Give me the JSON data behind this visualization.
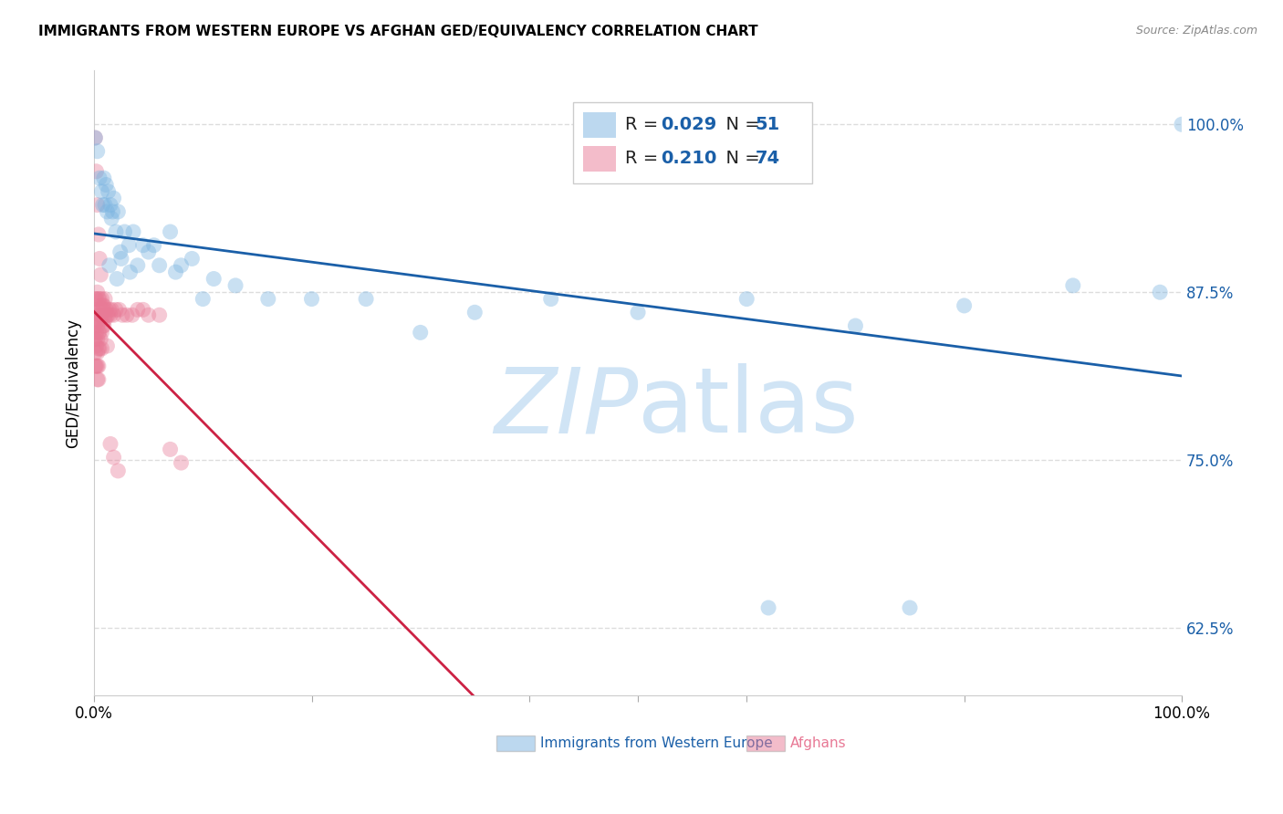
{
  "title": "IMMIGRANTS FROM WESTERN EUROPE VS AFGHAN GED/EQUIVALENCY CORRELATION CHART",
  "source": "Source: ZipAtlas.com",
  "ylabel": "GED/Equivalency",
  "yticks": [
    0.625,
    0.75,
    0.875,
    1.0
  ],
  "ytick_labels": [
    "62.5%",
    "75.0%",
    "87.5%",
    "100.0%"
  ],
  "xlim": [
    0.0,
    1.0
  ],
  "ylim": [
    0.575,
    1.04
  ],
  "background_color": "#ffffff",
  "grid_color": "#dddddd",
  "blue_color": "#7ab3e0",
  "pink_color": "#e87a96",
  "trend_blue": "#1a5fa8",
  "trend_pink": "#cc2244",
  "legend_r1": "R = 0.029",
  "legend_n1": "N = 51",
  "legend_r2": "R = 0.210",
  "legend_n2": "N = 74",
  "legend_color_r": "#1a5fa8",
  "legend_color_black": "#333333",
  "blue_scatter_x": [
    0.001,
    0.003,
    0.005,
    0.007,
    0.008,
    0.009,
    0.01,
    0.011,
    0.012,
    0.013,
    0.015,
    0.016,
    0.018,
    0.02,
    0.022,
    0.025,
    0.028,
    0.032,
    0.036,
    0.04,
    0.045,
    0.05,
    0.06,
    0.07,
    0.08,
    0.09,
    0.11,
    0.13,
    0.16,
    0.2,
    0.25,
    0.3,
    0.35,
    0.42,
    0.5,
    0.6,
    0.7,
    0.8,
    0.9,
    0.98,
    1.0,
    0.62,
    0.75,
    0.014,
    0.017,
    0.021,
    0.024,
    0.033,
    0.055,
    0.075,
    0.1
  ],
  "blue_scatter_y": [
    0.99,
    0.98,
    0.96,
    0.95,
    0.94,
    0.96,
    0.94,
    0.955,
    0.935,
    0.95,
    0.94,
    0.93,
    0.945,
    0.92,
    0.935,
    0.9,
    0.92,
    0.91,
    0.92,
    0.895,
    0.91,
    0.905,
    0.895,
    0.92,
    0.895,
    0.9,
    0.885,
    0.88,
    0.87,
    0.87,
    0.87,
    0.845,
    0.86,
    0.87,
    0.86,
    0.87,
    0.85,
    0.865,
    0.88,
    0.875,
    1.0,
    0.64,
    0.64,
    0.895,
    0.935,
    0.885,
    0.905,
    0.89,
    0.91,
    0.89,
    0.87
  ],
  "pink_scatter_x": [
    0.0,
    0.0,
    0.0,
    0.001,
    0.001,
    0.001,
    0.001,
    0.001,
    0.001,
    0.002,
    0.002,
    0.002,
    0.002,
    0.002,
    0.003,
    0.003,
    0.003,
    0.003,
    0.003,
    0.003,
    0.003,
    0.004,
    0.004,
    0.004,
    0.004,
    0.004,
    0.004,
    0.005,
    0.005,
    0.005,
    0.005,
    0.006,
    0.006,
    0.006,
    0.007,
    0.007,
    0.007,
    0.007,
    0.008,
    0.008,
    0.009,
    0.009,
    0.01,
    0.01,
    0.011,
    0.012,
    0.013,
    0.014,
    0.015,
    0.016,
    0.018,
    0.02,
    0.023,
    0.026,
    0.03,
    0.035,
    0.04,
    0.045,
    0.05,
    0.06,
    0.07,
    0.08,
    0.001,
    0.002,
    0.003,
    0.004,
    0.005,
    0.006,
    0.008,
    0.01,
    0.012,
    0.015,
    0.018,
    0.022
  ],
  "pink_scatter_y": [
    0.86,
    0.85,
    0.84,
    0.87,
    0.86,
    0.85,
    0.84,
    0.83,
    0.82,
    0.87,
    0.855,
    0.845,
    0.835,
    0.82,
    0.875,
    0.862,
    0.85,
    0.84,
    0.83,
    0.82,
    0.81,
    0.87,
    0.855,
    0.845,
    0.833,
    0.82,
    0.81,
    0.87,
    0.858,
    0.845,
    0.833,
    0.865,
    0.855,
    0.84,
    0.87,
    0.858,
    0.845,
    0.833,
    0.865,
    0.85,
    0.865,
    0.85,
    0.87,
    0.855,
    0.862,
    0.858,
    0.858,
    0.862,
    0.858,
    0.862,
    0.858,
    0.862,
    0.862,
    0.858,
    0.858,
    0.858,
    0.862,
    0.862,
    0.858,
    0.858,
    0.758,
    0.748,
    0.99,
    0.965,
    0.94,
    0.918,
    0.9,
    0.888,
    0.862,
    0.858,
    0.835,
    0.762,
    0.752,
    0.742
  ],
  "watermark_zip": "ZIP",
  "watermark_atlas": "atlas",
  "watermark_color": "#d0e4f5"
}
